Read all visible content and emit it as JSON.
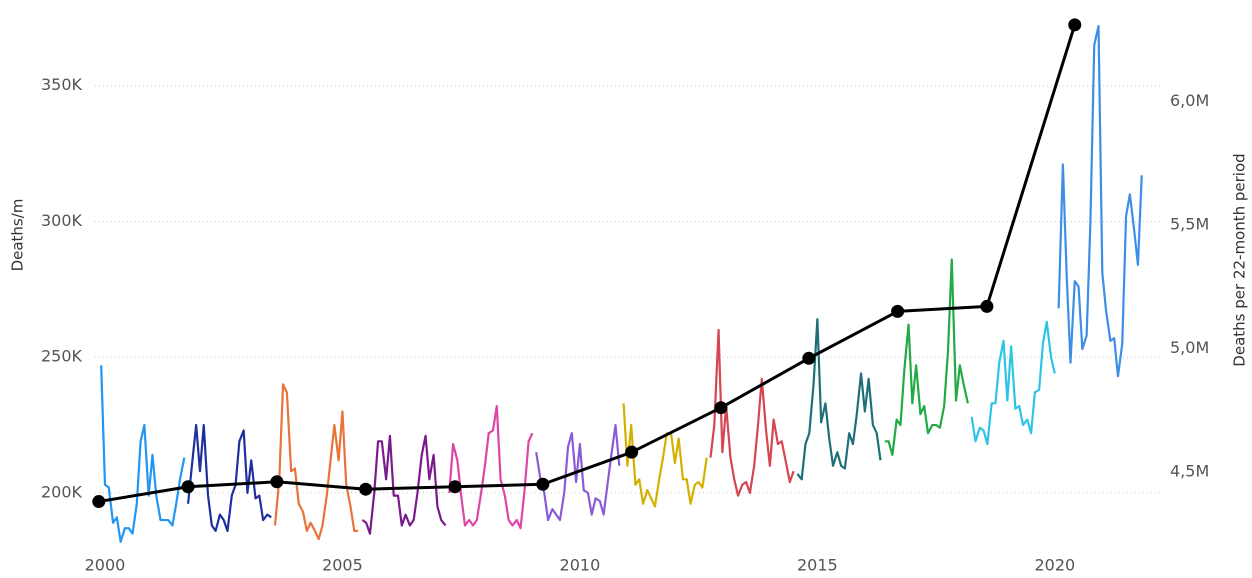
{
  "chart_data": {
    "type": "line",
    "ylabel": "Deaths/m",
    "y2label": "Deaths per 22-month period",
    "xlim": [
      1999.79,
      2022.32
    ],
    "xticks": [
      2000,
      2005,
      2010,
      2015,
      2020
    ],
    "ylim": [
      179700,
      377900
    ],
    "yticks": [
      {
        "value": 200000,
        "label": "200K"
      },
      {
        "value": 250000,
        "label": "250K"
      },
      {
        "value": 300000,
        "label": "300K"
      },
      {
        "value": 350000,
        "label": "350K"
      }
    ],
    "y2lim": [
      4192000,
      6370000
    ],
    "y2ticks": [
      {
        "value": 4500000,
        "label": "4,5M"
      },
      {
        "value": 5000000,
        "label": "5,0M"
      },
      {
        "value": 5500000,
        "label": "5,5M"
      },
      {
        "value": 6000000,
        "label": "6,0M"
      }
    ],
    "grid": true,
    "series": [
      {
        "color": "#2196f3",
        "x": [
          1999.92,
          2000.0,
          2000.08,
          2000.17,
          2000.25,
          2000.33,
          2000.42,
          2000.5,
          2000.58,
          2000.67,
          2000.75,
          2000.83,
          2000.92,
          2001.0,
          2001.08,
          2001.17,
          2001.25,
          2001.33,
          2001.42,
          2001.5,
          2001.58,
          2001.67
        ],
        "values": [
          247000,
          203000,
          202000,
          189000,
          191000,
          182000,
          187000,
          187000,
          185000,
          196000,
          219000,
          225000,
          199000,
          214000,
          199000,
          190000,
          190000,
          190000,
          188000,
          196000,
          205000,
          213000
        ]
      },
      {
        "color": "#1f2f9e",
        "x": [
          2001.75,
          2001.83,
          2001.92,
          2002.0,
          2002.08,
          2002.17,
          2002.25,
          2002.33,
          2002.42,
          2002.5,
          2002.58,
          2002.67,
          2002.75,
          2002.83,
          2002.92,
          2003.0,
          2003.08,
          2003.17,
          2003.25,
          2003.33,
          2003.42,
          2003.5
        ],
        "values": [
          196000,
          210000,
          225000,
          208000,
          225000,
          199000,
          188000,
          186000,
          192000,
          190000,
          186000,
          199000,
          203000,
          219000,
          223000,
          200000,
          212000,
          198000,
          199000,
          190000,
          192000,
          191000
        ]
      },
      {
        "color": "#e8743b",
        "x": [
          2003.58,
          2003.67,
          2003.75,
          2003.83,
          2003.92,
          2004.0,
          2004.08,
          2004.17,
          2004.25,
          2004.33,
          2004.42,
          2004.5,
          2004.58,
          2004.67,
          2004.75,
          2004.83,
          2004.92,
          2005.0,
          2005.08,
          2005.17,
          2005.25,
          2005.33
        ],
        "values": [
          188000,
          205000,
          240000,
          237000,
          208000,
          209000,
          196000,
          193000,
          186000,
          189000,
          186000,
          183000,
          188000,
          199000,
          212000,
          225000,
          212000,
          230000,
          203000,
          195000,
          186000,
          186000
        ]
      },
      {
        "color": "#7a1a8c",
        "x": [
          2005.42,
          2005.5,
          2005.58,
          2005.67,
          2005.75,
          2005.83,
          2005.92,
          2006.0,
          2006.08,
          2006.17,
          2006.25,
          2006.33,
          2006.42,
          2006.5,
          2006.58,
          2006.67,
          2006.75,
          2006.83,
          2006.92,
          2007.0,
          2007.08,
          2007.17
        ],
        "values": [
          190000,
          189000,
          185000,
          200000,
          219000,
          219000,
          205000,
          221000,
          199000,
          199000,
          188000,
          192000,
          188000,
          190000,
          200000,
          214000,
          221000,
          205000,
          214000,
          195000,
          190000,
          188000
        ]
      },
      {
        "color": "#e044a7",
        "x": [
          2007.25,
          2007.33,
          2007.42,
          2007.5,
          2007.58,
          2007.67,
          2007.75,
          2007.83,
          2007.92,
          2008.0,
          2008.08,
          2008.17,
          2008.25,
          2008.33,
          2008.42,
          2008.5,
          2008.58,
          2008.67,
          2008.75,
          2008.83,
          2008.92,
          2009.0
        ],
        "values": [
          200000,
          218000,
          212000,
          199000,
          188000,
          190000,
          188000,
          190000,
          200000,
          210000,
          222000,
          223000,
          232000,
          205000,
          199000,
          190000,
          188000,
          190000,
          187000,
          200000,
          219000,
          222000
        ]
      },
      {
        "color": "#8a5bd6",
        "x": [
          2009.08,
          2009.17,
          2009.25,
          2009.33,
          2009.42,
          2009.5,
          2009.58,
          2009.67,
          2009.75,
          2009.83,
          2009.92,
          2010.0,
          2010.08,
          2010.17,
          2010.25,
          2010.33,
          2010.42,
          2010.5,
          2010.58,
          2010.67,
          2010.75,
          2010.83
        ],
        "values": [
          215000,
          205000,
          200000,
          190000,
          194000,
          192000,
          190000,
          200000,
          217000,
          222000,
          204000,
          218000,
          201000,
          200000,
          192000,
          198000,
          197000,
          192000,
          203000,
          215000,
          225000,
          210000
        ]
      },
      {
        "color": "#d4b000",
        "x": [
          2010.92,
          2011.0,
          2011.08,
          2011.17,
          2011.25,
          2011.33,
          2011.42,
          2011.5,
          2011.58,
          2011.67,
          2011.75,
          2011.83,
          2011.92,
          2012.0,
          2012.08,
          2012.17,
          2012.25,
          2012.33,
          2012.42,
          2012.5,
          2012.58,
          2012.67
        ],
        "values": [
          233000,
          210000,
          225000,
          203000,
          205000,
          196000,
          201000,
          198000,
          195000,
          205000,
          213000,
          222000,
          222000,
          211000,
          220000,
          205000,
          205000,
          196000,
          203000,
          204000,
          202000,
          213000
        ]
      },
      {
        "color": "#d64550",
        "x": [
          2012.75,
          2012.83,
          2012.92,
          2013.0,
          2013.08,
          2013.17,
          2013.25,
          2013.33,
          2013.42,
          2013.5,
          2013.58,
          2013.67,
          2013.75,
          2013.83,
          2013.92,
          2014.0,
          2014.08,
          2014.17,
          2014.25,
          2014.33,
          2014.42,
          2014.5
        ],
        "values": [
          213000,
          225000,
          260000,
          215000,
          232000,
          213000,
          205000,
          199000,
          203000,
          204000,
          200000,
          210000,
          225000,
          242000,
          223000,
          210000,
          227000,
          218000,
          219000,
          212000,
          204000,
          208000
        ]
      },
      {
        "color": "#1f6f7a",
        "x": [
          2014.58,
          2014.67,
          2014.75,
          2014.83,
          2014.92,
          2015.0,
          2015.08,
          2015.17,
          2015.25,
          2015.33,
          2015.42,
          2015.5,
          2015.58,
          2015.67,
          2015.75,
          2015.83,
          2015.92,
          2016.0,
          2016.08,
          2016.17,
          2016.25,
          2016.33
        ],
        "values": [
          207000,
          205000,
          218000,
          222000,
          240000,
          264000,
          226000,
          233000,
          220000,
          210000,
          215000,
          210000,
          209000,
          222000,
          218000,
          229000,
          244000,
          230000,
          242000,
          225000,
          222000,
          212000
        ]
      },
      {
        "color": "#22aa44",
        "x": [
          2016.42,
          2016.5,
          2016.58,
          2016.67,
          2016.75,
          2016.83,
          2016.92,
          2017.0,
          2017.08,
          2017.17,
          2017.25,
          2017.33,
          2017.42,
          2017.5,
          2017.58,
          2017.67,
          2017.75,
          2017.83,
          2017.92,
          2018.0,
          2018.08,
          2018.17
        ],
        "values": [
          219000,
          219000,
          214000,
          227000,
          225000,
          245000,
          262000,
          233000,
          247000,
          229000,
          232000,
          222000,
          225000,
          225000,
          224000,
          232000,
          252000,
          286000,
          234000,
          247000,
          240000,
          233000
        ]
      },
      {
        "color": "#2ec4e6",
        "x": [
          2018.25,
          2018.33,
          2018.42,
          2018.5,
          2018.58,
          2018.67,
          2018.75,
          2018.83,
          2018.92,
          2019.0,
          2019.08,
          2019.17,
          2019.25,
          2019.33,
          2019.42,
          2019.5,
          2019.58,
          2019.67,
          2019.75,
          2019.83,
          2019.92,
          2020.0
        ],
        "values": [
          228000,
          219000,
          224000,
          223000,
          218000,
          233000,
          233000,
          248000,
          256000,
          234000,
          254000,
          231000,
          232000,
          225000,
          227000,
          222000,
          237000,
          238000,
          255000,
          263000,
          250000,
          244000
        ]
      },
      {
        "color": "#3d8fe6",
        "x": [
          2020.08,
          2020.17,
          2020.25,
          2020.33,
          2020.42,
          2020.5,
          2020.58,
          2020.67,
          2020.75,
          2020.83,
          2020.92,
          2021.0,
          2021.08,
          2021.17,
          2021.25,
          2021.33,
          2021.42,
          2021.5,
          2021.58,
          2021.67,
          2021.75,
          2021.83
        ],
        "values": [
          268000,
          321000,
          280000,
          248000,
          278000,
          276000,
          253000,
          258000,
          300000,
          365000,
          372000,
          281000,
          267000,
          256000,
          257000,
          243000,
          255000,
          302000,
          310000,
          297000,
          284000,
          317000
        ]
      },
      {
        "color": "#000000",
        "axis": "y2",
        "markers": true,
        "x": [
          1999.87,
          2001.75,
          2003.62,
          2005.49,
          2007.37,
          2009.22,
          2011.09,
          2012.97,
          2014.82,
          2016.69,
          2018.57,
          2020.42
        ],
        "values": [
          4380000,
          4440000,
          4460000,
          4430000,
          4440000,
          4450000,
          4580000,
          4760000,
          4960000,
          5150000,
          5170000,
          6310000
        ]
      }
    ]
  }
}
